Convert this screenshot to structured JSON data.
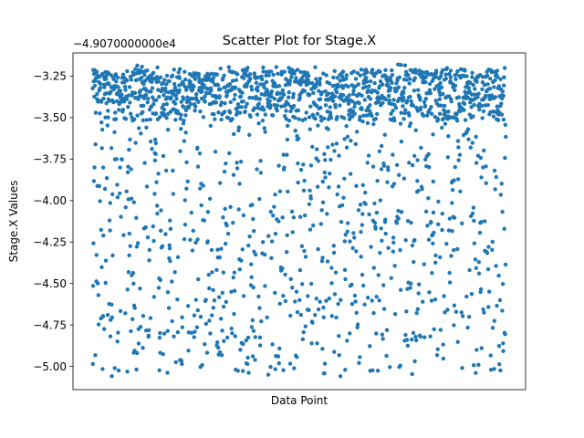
{
  "chart_data": {
    "type": "scatter",
    "title": "Scatter Plot for Stage.X",
    "xlabel": "Data Point",
    "ylabel": "Stage.X Values",
    "offset_text": "−4.9070000000e4",
    "xlim": [
      -95,
      2095
    ],
    "ylim": [
      -5.14,
      -3.11
    ],
    "y_ticks": [
      -3.25,
      -3.5,
      -3.75,
      -4.0,
      -4.25,
      -4.5,
      -4.75,
      -5.0
    ],
    "y_tick_labels": [
      "−3.25",
      "−3.50",
      "−3.75",
      "−4.00",
      "−4.25",
      "−4.50",
      "−4.75",
      "−5.00"
    ],
    "x_ticks_visible": false,
    "grid": false,
    "marker_color": "#1f77b4",
    "points": {
      "n": 2000,
      "x_range": [
        0,
        1999
      ],
      "description_y": "dense band between -3.18 and -3.55 (~60% of points), remaining points scattered uniformly between -3.55 and -5.06",
      "dense_band": [
        -3.55,
        -3.18
      ],
      "sparse_range": [
        -5.06,
        -3.55
      ],
      "dense_fraction": 0.6,
      "seed": 7
    }
  }
}
